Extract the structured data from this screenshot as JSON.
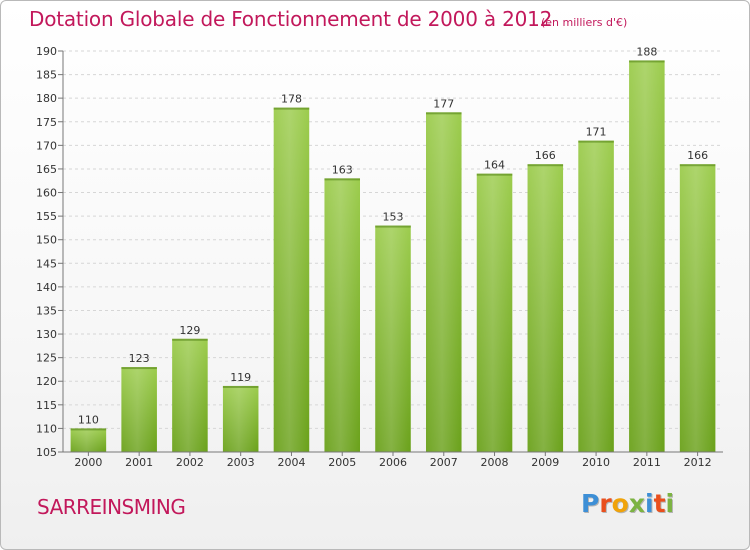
{
  "chart_data": {
    "type": "bar",
    "title": "Dotation Globale de Fonctionnement de 2000 à 2012",
    "subtitle": "(en milliers d'€)",
    "categories": [
      "2000",
      "2001",
      "2002",
      "2003",
      "2004",
      "2005",
      "2006",
      "2007",
      "2008",
      "2009",
      "2010",
      "2011",
      "2012"
    ],
    "values": [
      110,
      123,
      129,
      119,
      178,
      163,
      153,
      177,
      164,
      166,
      171,
      188,
      166
    ],
    "ylim": [
      105,
      190
    ],
    "yticks": [
      105,
      110,
      115,
      120,
      125,
      130,
      135,
      140,
      145,
      150,
      155,
      160,
      165,
      170,
      175,
      180,
      185,
      190
    ],
    "grid": true,
    "legend": "none",
    "bar_color_top": "#9ccc4d",
    "bar_color_bottom": "#6aa11a"
  },
  "footer": {
    "commune": "SARREINSMING",
    "logo_text": "Proxiti",
    "logo_colors": [
      "#3d8fd6",
      "#e94f1d",
      "#f0a30a",
      "#7cb342",
      "#3d8fd6",
      "#e94f1d",
      "#7cb342"
    ]
  }
}
